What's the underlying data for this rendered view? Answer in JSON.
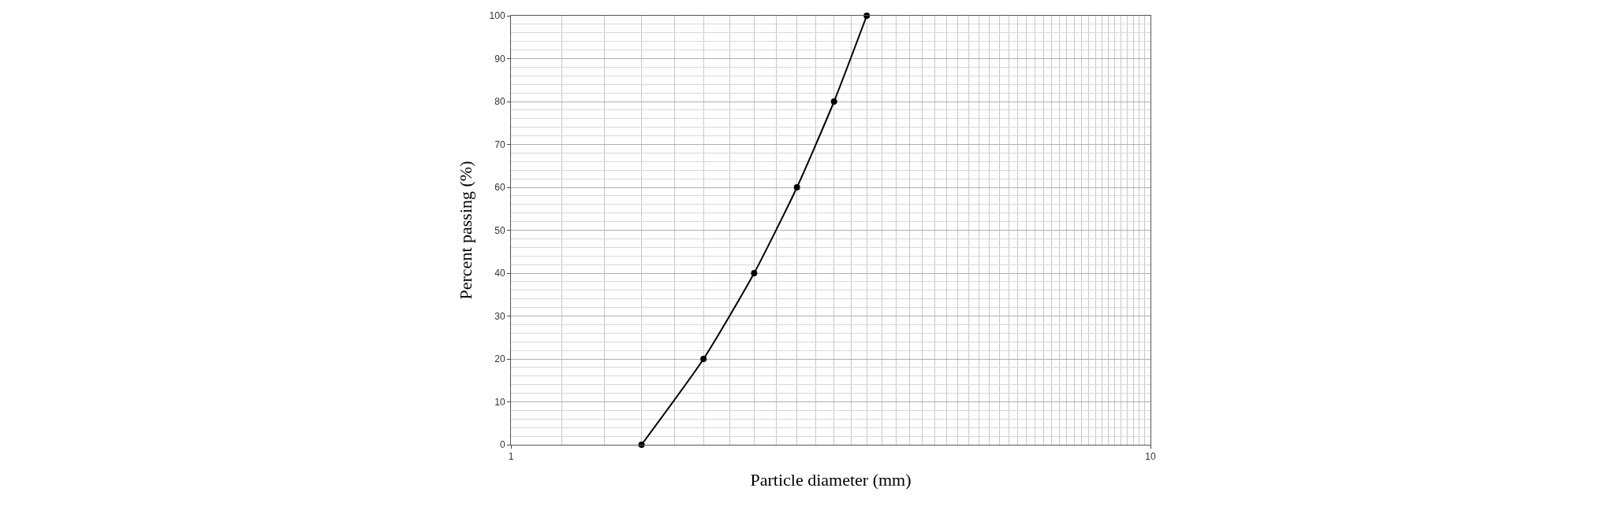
{
  "chart_data": {
    "type": "line",
    "xlabel": "Particle diameter (mm)",
    "ylabel": "Percent passing (%)",
    "x": [
      1.6,
      2.0,
      2.4,
      2.8,
      3.2,
      3.6
    ],
    "series": [
      {
        "color": "#000000",
        "values": [
          0,
          20,
          40,
          60,
          80,
          100
        ]
      }
    ],
    "log": "x",
    "xlim": [
      1,
      10
    ],
    "xticks": [
      1,
      10
    ],
    "ylim": [
      0,
      100
    ],
    "yticks": [
      0,
      10,
      20,
      30,
      40,
      50,
      60,
      70,
      80,
      90,
      100
    ],
    "grid": true,
    "marker": "circle",
    "line_style": "solid",
    "legend": false
  }
}
